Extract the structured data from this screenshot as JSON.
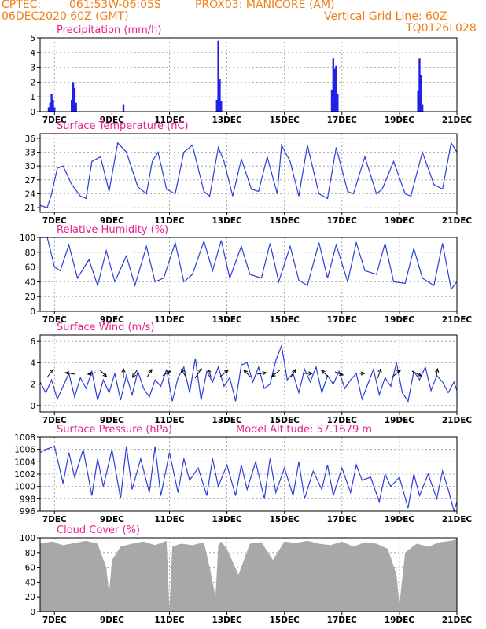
{
  "header": {
    "line1_left": "CPTEC:",
    "coords": "061:53W-06:05S",
    "location": "PROX03: MANICORE (AM)",
    "date": "06DEC2020 60Z (GMT)",
    "grid_note": "Vertical Grid Line: 60Z",
    "run_id": "TQ0126L028"
  },
  "colors": {
    "header": "#f07f18",
    "title": "#e8208c",
    "line": "#2b3fd6",
    "bar": "#2020e8",
    "cloud": "#a8a8a8",
    "grid": "#9a9a9a"
  },
  "x_axis": {
    "start_day": 6.5,
    "end_day": 21.0,
    "ticks": [
      {
        "day": 7,
        "label": "7DEC"
      },
      {
        "day": 9,
        "label": "9DEC"
      },
      {
        "day": 11,
        "label": "11DEC"
      },
      {
        "day": 13,
        "label": "13DEC"
      },
      {
        "day": 15,
        "label": "15DEC"
      },
      {
        "day": 17,
        "label": "17DEC"
      },
      {
        "day": 19,
        "label": "19DEC"
      },
      {
        "day": 21,
        "label": "21DEC"
      }
    ]
  },
  "model_altitude": "Model Altitude: 57.1679 m",
  "chart_data": [
    {
      "id": "precip",
      "type": "bar",
      "title": "Precipitation (mm/h)",
      "ylim": [
        0,
        5
      ],
      "yticks": [
        0,
        1,
        2,
        3,
        4,
        5
      ],
      "bars": [
        {
          "x": 6.8,
          "y": 0.3
        },
        {
          "x": 6.85,
          "y": 0.6
        },
        {
          "x": 6.9,
          "y": 1.2
        },
        {
          "x": 6.95,
          "y": 0.8
        },
        {
          "x": 7.0,
          "y": 0.3
        },
        {
          "x": 7.6,
          "y": 0.8
        },
        {
          "x": 7.65,
          "y": 2.0
        },
        {
          "x": 7.7,
          "y": 1.6
        },
        {
          "x": 7.75,
          "y": 0.6
        },
        {
          "x": 9.4,
          "y": 0.5
        },
        {
          "x": 12.65,
          "y": 0.8
        },
        {
          "x": 12.7,
          "y": 4.8
        },
        {
          "x": 12.75,
          "y": 2.2
        },
        {
          "x": 12.8,
          "y": 0.7
        },
        {
          "x": 16.65,
          "y": 1.5
        },
        {
          "x": 16.7,
          "y": 3.6
        },
        {
          "x": 16.75,
          "y": 2.9
        },
        {
          "x": 16.8,
          "y": 3.1
        },
        {
          "x": 16.85,
          "y": 1.2
        },
        {
          "x": 19.65,
          "y": 1.4
        },
        {
          "x": 19.7,
          "y": 3.6
        },
        {
          "x": 19.75,
          "y": 2.5
        },
        {
          "x": 19.8,
          "y": 0.5
        }
      ]
    },
    {
      "id": "temp",
      "type": "line",
      "title": "Surface Temperature (nC)",
      "ylim": [
        20,
        37
      ],
      "yticks": [
        21,
        24,
        27,
        30,
        33,
        36
      ],
      "x": [
        6.5,
        6.75,
        6.9,
        7.1,
        7.3,
        7.6,
        7.9,
        8.1,
        8.3,
        8.6,
        8.9,
        9.2,
        9.5,
        9.9,
        10.2,
        10.4,
        10.6,
        10.9,
        11.2,
        11.5,
        11.8,
        12.2,
        12.4,
        12.7,
        12.9,
        13.2,
        13.5,
        13.85,
        14.1,
        14.4,
        14.75,
        14.9,
        15.2,
        15.5,
        15.8,
        16.2,
        16.5,
        16.8,
        17.2,
        17.4,
        17.8,
        18.2,
        18.4,
        18.8,
        19.2,
        19.4,
        19.8,
        20.2,
        20.5,
        20.8,
        21.0
      ],
      "y": [
        21.5,
        21.0,
        24.0,
        29.5,
        30.0,
        26.0,
        23.5,
        23.0,
        31.0,
        32.0,
        24.5,
        35.0,
        33.0,
        25.5,
        24.0,
        31.0,
        33.0,
        25.0,
        24.0,
        33.0,
        34.5,
        24.5,
        23.5,
        34.0,
        31.0,
        23.5,
        31.5,
        25.0,
        24.5,
        32.0,
        24.0,
        34.5,
        31.0,
        23.5,
        34.5,
        24.0,
        23.0,
        34.0,
        24.5,
        24.0,
        32.0,
        24.0,
        25.0,
        31.0,
        24.0,
        23.5,
        33.0,
        26.0,
        25.0,
        35.0,
        33.0
      ]
    },
    {
      "id": "rh",
      "type": "line",
      "title": "Relative Humidity (%)",
      "ylim": [
        0,
        100
      ],
      "yticks": [
        0,
        20,
        40,
        60,
        80,
        100
      ],
      "x": [
        6.5,
        6.75,
        7.0,
        7.2,
        7.5,
        7.8,
        8.2,
        8.5,
        8.8,
        9.1,
        9.5,
        9.8,
        10.2,
        10.5,
        10.8,
        11.2,
        11.5,
        11.8,
        12.2,
        12.5,
        12.8,
        13.1,
        13.5,
        13.8,
        14.2,
        14.5,
        14.8,
        15.2,
        15.5,
        15.8,
        16.2,
        16.5,
        16.8,
        17.2,
        17.5,
        17.8,
        18.2,
        18.5,
        18.8,
        19.2,
        19.5,
        19.8,
        20.2,
        20.5,
        20.8,
        21.0
      ],
      "y": [
        100,
        100,
        60,
        55,
        90,
        45,
        70,
        35,
        82,
        40,
        75,
        35,
        88,
        40,
        45,
        93,
        40,
        50,
        95,
        55,
        96,
        45,
        88,
        50,
        45,
        92,
        40,
        88,
        42,
        35,
        93,
        45,
        90,
        40,
        93,
        55,
        50,
        92,
        40,
        38,
        85,
        45,
        35,
        92,
        30,
        40
      ]
    },
    {
      "id": "wind",
      "type": "line",
      "title": "Surface Wind (m/s)",
      "ylim": [
        -0.6,
        6.6
      ],
      "yticks": [
        0,
        2,
        4,
        6
      ],
      "x": [
        6.5,
        6.7,
        6.9,
        7.1,
        7.3,
        7.5,
        7.7,
        7.9,
        8.1,
        8.3,
        8.5,
        8.7,
        8.9,
        9.1,
        9.3,
        9.5,
        9.7,
        9.9,
        10.1,
        10.3,
        10.5,
        10.7,
        10.9,
        11.1,
        11.3,
        11.5,
        11.7,
        11.9,
        12.1,
        12.3,
        12.5,
        12.7,
        12.9,
        13.1,
        13.3,
        13.5,
        13.7,
        13.9,
        14.1,
        14.3,
        14.5,
        14.7,
        14.9,
        15.1,
        15.3,
        15.5,
        15.7,
        15.9,
        16.1,
        16.3,
        16.5,
        16.7,
        16.9,
        17.1,
        17.3,
        17.5,
        17.7,
        17.9,
        18.1,
        18.3,
        18.5,
        18.7,
        18.9,
        19.1,
        19.3,
        19.5,
        19.7,
        19.9,
        20.1,
        20.3,
        20.5,
        20.7,
        20.9,
        21.0
      ],
      "y": [
        2.2,
        1.2,
        2.4,
        0.6,
        1.8,
        3.0,
        0.8,
        2.6,
        1.6,
        3.2,
        0.5,
        2.4,
        1.2,
        3.0,
        0.5,
        2.8,
        1.0,
        3.2,
        1.6,
        0.8,
        2.4,
        1.8,
        3.4,
        0.4,
        2.6,
        3.6,
        1.2,
        4.4,
        0.5,
        3.2,
        2.2,
        3.6,
        1.8,
        2.6,
        0.4,
        3.8,
        4.0,
        2.2,
        3.6,
        1.6,
        2.0,
        4.2,
        5.6,
        2.4,
        3.0,
        1.2,
        3.4,
        2.2,
        3.6,
        1.2,
        2.8,
        2.0,
        3.2,
        1.6,
        2.4,
        3.0,
        0.6,
        2.0,
        3.4,
        1.0,
        2.6,
        1.8,
        4.0,
        1.2,
        0.4,
        3.2,
        2.4,
        3.6,
        1.4,
        2.8,
        2.2,
        1.2,
        2.2,
        1.4
      ],
      "arrows": [
        {
          "x": 6.85,
          "u": 0.4,
          "v": 0.5
        },
        {
          "x": 7.55,
          "u": -0.6,
          "v": 0.1
        },
        {
          "x": 8.3,
          "u": -0.5,
          "v": -0.1
        },
        {
          "x": 8.7,
          "u": 0.4,
          "v": -0.4
        },
        {
          "x": 9.4,
          "u": 0.0,
          "v": 0.6
        },
        {
          "x": 9.8,
          "u": -0.3,
          "v": -0.5
        },
        {
          "x": 10.3,
          "u": 0.3,
          "v": 0.5
        },
        {
          "x": 10.9,
          "u": 0.5,
          "v": 0.3
        },
        {
          "x": 11.5,
          "u": -0.3,
          "v": 0.5
        },
        {
          "x": 12.0,
          "u": 0.4,
          "v": 0.6
        },
        {
          "x": 12.4,
          "u": -0.2,
          "v": 0.5
        },
        {
          "x": 12.9,
          "u": 0.5,
          "v": 0.4
        },
        {
          "x": 13.7,
          "u": -0.4,
          "v": 0.4
        },
        {
          "x": 14.2,
          "u": 0.6,
          "v": 0.1
        },
        {
          "x": 14.7,
          "u": -0.5,
          "v": -0.4
        },
        {
          "x": 15.3,
          "u": 0.3,
          "v": 0.5
        },
        {
          "x": 15.8,
          "u": 0.6,
          "v": 0.0
        },
        {
          "x": 16.4,
          "u": -0.4,
          "v": 0.4
        },
        {
          "x": 16.9,
          "u": 0.5,
          "v": -0.2
        },
        {
          "x": 17.7,
          "u": 0.3,
          "v": 0.0
        },
        {
          "x": 18.3,
          "u": 0.2,
          "v": 0.6
        },
        {
          "x": 18.9,
          "u": 0.5,
          "v": 0.4
        },
        {
          "x": 19.6,
          "u": 0.6,
          "v": -0.3
        },
        {
          "x": 20.3,
          "u": 0.1,
          "v": 0.6
        }
      ]
    },
    {
      "id": "press",
      "type": "line",
      "title": "Surface Pressure (hPa)",
      "ylim": [
        996,
        1008
      ],
      "yticks": [
        996,
        998,
        1000,
        1002,
        1004,
        1006,
        1008
      ],
      "x": [
        6.5,
        6.7,
        7.0,
        7.3,
        7.5,
        7.7,
        8.0,
        8.3,
        8.5,
        8.7,
        9.0,
        9.3,
        9.5,
        9.7,
        10.0,
        10.3,
        10.5,
        10.7,
        11.0,
        11.3,
        11.5,
        11.7,
        12.0,
        12.3,
        12.5,
        12.7,
        13.0,
        13.3,
        13.5,
        13.7,
        14.0,
        14.3,
        14.5,
        14.7,
        15.0,
        15.3,
        15.5,
        15.7,
        16.0,
        16.3,
        16.5,
        16.7,
        17.0,
        17.3,
        17.5,
        17.7,
        18.0,
        18.3,
        18.5,
        18.7,
        19.0,
        19.3,
        19.5,
        19.7,
        20.0,
        20.3,
        20.5,
        20.7,
        20.9,
        21.0
      ],
      "y": [
        1005.5,
        1006.0,
        1006.5,
        1000.5,
        1005.5,
        1001.5,
        1006.0,
        998.5,
        1004.5,
        1000.0,
        1006.0,
        998.0,
        1006.5,
        999.5,
        1004.5,
        999.0,
        1006.5,
        998.5,
        1005.5,
        999.0,
        1004.5,
        1001.0,
        1003.0,
        998.5,
        1004.5,
        1000.0,
        1003.5,
        998.5,
        1003.5,
        999.5,
        1004.0,
        998.0,
        1004.5,
        999.0,
        1003.0,
        998.5,
        1004.0,
        998.0,
        1002.5,
        999.5,
        1003.5,
        998.5,
        1003.0,
        999.0,
        1003.5,
        1001.0,
        1001.5,
        997.5,
        1002.0,
        1000.0,
        1001.5,
        996.5,
        1002.0,
        998.5,
        1002.0,
        998.0,
        1002.5,
        999.5,
        996.0,
        997.5
      ]
    },
    {
      "id": "cloud",
      "type": "area",
      "title": "Cloud Cover (%)",
      "ylim": [
        0,
        100
      ],
      "yticks": [
        0,
        20,
        40,
        60,
        80,
        100
      ],
      "x": [
        6.5,
        6.9,
        7.3,
        7.7,
        8.1,
        8.5,
        8.8,
        8.9,
        9.0,
        9.3,
        9.7,
        10.1,
        10.5,
        10.9,
        11.0,
        11.1,
        11.4,
        11.8,
        12.2,
        12.4,
        12.6,
        12.7,
        12.8,
        13.0,
        13.4,
        13.8,
        14.2,
        14.6,
        15.0,
        15.4,
        15.8,
        16.2,
        16.6,
        17.0,
        17.4,
        17.8,
        18.2,
        18.6,
        18.9,
        19.0,
        19.2,
        19.6,
        20.0,
        20.4,
        20.8,
        21.0
      ],
      "y": [
        92,
        95,
        90,
        93,
        96,
        92,
        60,
        25,
        70,
        88,
        92,
        95,
        90,
        96,
        5,
        88,
        92,
        90,
        94,
        60,
        20,
        90,
        95,
        85,
        50,
        92,
        94,
        70,
        95,
        93,
        96,
        92,
        90,
        95,
        88,
        94,
        92,
        85,
        50,
        10,
        80,
        92,
        88,
        94,
        96,
        98
      ]
    }
  ]
}
